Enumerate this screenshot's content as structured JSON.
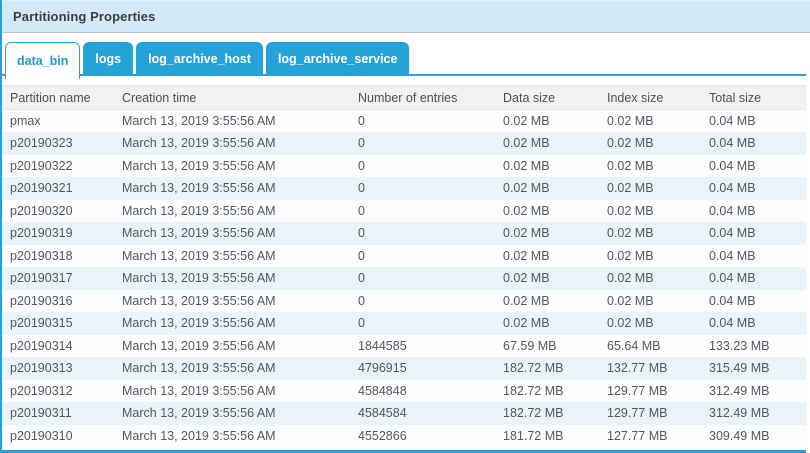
{
  "panel": {
    "title": "Partitioning Properties"
  },
  "colors": {
    "accent": "#25a3d8",
    "active_tab_text": "#1e9cd0",
    "titlebar_bg": "#d2eaf5",
    "header_row_bg": "#f1f1f1",
    "stripe_row_bg": "#e9f4fa"
  },
  "tabs": [
    {
      "label": "data_bin",
      "active": true
    },
    {
      "label": "logs",
      "active": false
    },
    {
      "label": "log_archive_host",
      "active": false
    },
    {
      "label": "log_archive_service",
      "active": false
    }
  ],
  "table": {
    "columns": [
      "Partition name",
      "Creation time",
      "Number of entries",
      "Data size",
      "Index size",
      "Total size"
    ],
    "rows": [
      [
        "pmax",
        "March 13, 2019 3:55:56 AM",
        "0",
        "0.02 MB",
        "0.02 MB",
        "0.04 MB"
      ],
      [
        "p20190323",
        "March 13, 2019 3:55:56 AM",
        "0",
        "0.02 MB",
        "0.02 MB",
        "0.04 MB"
      ],
      [
        "p20190322",
        "March 13, 2019 3:55:56 AM",
        "0",
        "0.02 MB",
        "0.02 MB",
        "0.04 MB"
      ],
      [
        "p20190321",
        "March 13, 2019 3:55:56 AM",
        "0",
        "0.02 MB",
        "0.02 MB",
        "0.04 MB"
      ],
      [
        "p20190320",
        "March 13, 2019 3:55:56 AM",
        "0",
        "0.02 MB",
        "0.02 MB",
        "0.04 MB"
      ],
      [
        "p20190319",
        "March 13, 2019 3:55:56 AM",
        "0",
        "0.02 MB",
        "0.02 MB",
        "0.04 MB"
      ],
      [
        "p20190318",
        "March 13, 2019 3:55:56 AM",
        "0",
        "0.02 MB",
        "0.02 MB",
        "0.04 MB"
      ],
      [
        "p20190317",
        "March 13, 2019 3:55:56 AM",
        "0",
        "0.02 MB",
        "0.02 MB",
        "0.04 MB"
      ],
      [
        "p20190316",
        "March 13, 2019 3:55:56 AM",
        "0",
        "0.02 MB",
        "0.02 MB",
        "0.04 MB"
      ],
      [
        "p20190315",
        "March 13, 2019 3:55:56 AM",
        "0",
        "0.02 MB",
        "0.02 MB",
        "0.04 MB"
      ],
      [
        "p20190314",
        "March 13, 2019 3:55:56 AM",
        "1844585",
        "67.59 MB",
        "65.64 MB",
        "133.23 MB"
      ],
      [
        "p20190313",
        "March 13, 2019 3:55:56 AM",
        "4796915",
        "182.72 MB",
        "132.77 MB",
        "315.49 MB"
      ],
      [
        "p20190312",
        "March 13, 2019 3:55:56 AM",
        "4584848",
        "182.72 MB",
        "129.77 MB",
        "312.49 MB"
      ],
      [
        "p20190311",
        "March 13, 2019 3:55:56 AM",
        "4584584",
        "182.72 MB",
        "129.77 MB",
        "312.49 MB"
      ],
      [
        "p20190310",
        "March 13, 2019 3:55:56 AM",
        "4552866",
        "181.72 MB",
        "127.77 MB",
        "309.49 MB"
      ]
    ]
  }
}
